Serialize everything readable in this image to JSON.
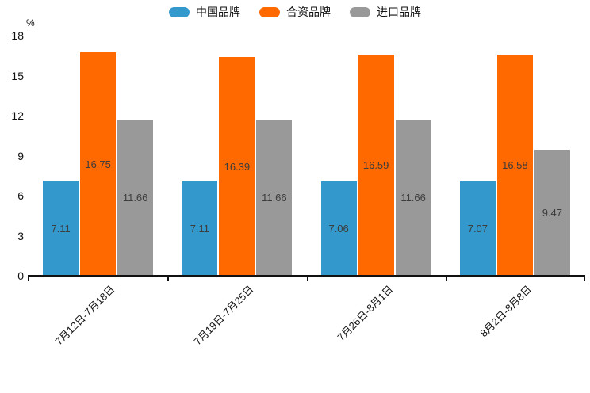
{
  "chart_data": {
    "type": "bar",
    "title": "",
    "unit_label": "%",
    "categories": [
      "7月12日-7月18日",
      "7月19日-7月25日",
      "7月26日-8月1日",
      "8月2日-8月8日"
    ],
    "series": [
      {
        "name": "中国品牌",
        "color": "#3398CC",
        "values": [
          7.11,
          7.11,
          7.06,
          7.07
        ]
      },
      {
        "name": "合资品牌",
        "color": "#FF6900",
        "values": [
          16.75,
          16.39,
          16.59,
          16.58
        ]
      },
      {
        "name": "进口品牌",
        "color": "#999999",
        "values": [
          11.66,
          11.66,
          11.66,
          9.47
        ]
      }
    ],
    "value_labels": [
      "7.11",
      "16.75",
      "11.66",
      "7.11",
      "16.39",
      "11.66",
      "7.06",
      "16.59",
      "11.66",
      "7.07",
      "16.58",
      "9.47"
    ],
    "xlabel": "",
    "ylabel": "%",
    "ylim": [
      0,
      18
    ],
    "yticks": [
      "0",
      "3",
      "6",
      "9",
      "12",
      "15",
      "18"
    ],
    "grid": false,
    "legend_position": "top-center",
    "value_label_color": "#3c3c3c",
    "axis_color": "#111111",
    "background_color": "#ffffff"
  }
}
